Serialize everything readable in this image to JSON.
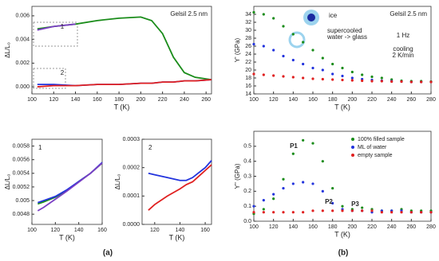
{
  "panel_labels": [
    "(a)",
    "(b)"
  ],
  "chart_data": [
    {
      "type": "line",
      "y_label": "ΔL/L₀",
      "x_label": "T (K)",
      "annotations": [
        "Gelsil 2.5 nm",
        "1",
        "2"
      ],
      "xlim": [
        100,
        265
      ],
      "ylim": [
        -0.0006,
        0.0068
      ],
      "xticks": [
        100,
        120,
        140,
        160,
        180,
        200,
        220,
        240,
        260
      ],
      "yticks": [
        {
          "value": 0,
          "label": "0.000"
        },
        {
          "value": 0.002,
          "label": "0.002"
        },
        {
          "value": 0.004,
          "label": "0.004"
        },
        {
          "value": 0.006,
          "label": "0.006"
        }
      ],
      "x": [
        105,
        120,
        140,
        160,
        180,
        200,
        210,
        220,
        230,
        240,
        250,
        265
      ],
      "series": [
        {
          "color": "#1a8c1a",
          "values": [
            0.0049,
            0.0051,
            0.0053,
            0.0056,
            0.0058,
            0.0059,
            0.0056,
            0.0045,
            0.0025,
            0.0012,
            0.0008,
            0.0006
          ]
        },
        {
          "color": "#7b3fc4",
          "values": [
            0.0048,
            0.0051,
            0.0053,
            null,
            null,
            null,
            null,
            null,
            null,
            null,
            null,
            null
          ]
        },
        {
          "color": "#2233dd",
          "values": [
            0.0002,
            0.0002,
            0.0001,
            0.0002,
            0.0002,
            0.0003,
            0.0003,
            0.0004,
            0.0004,
            0.0005,
            0.0005,
            0.0006
          ]
        },
        {
          "color": "#e02020",
          "values": [
            0.0,
            0.0001,
            0.0001,
            0.0002,
            0.0002,
            0.0003,
            0.0003,
            0.0004,
            0.0004,
            0.0005,
            0.0005,
            0.0006
          ]
        }
      ]
    },
    {
      "type": "line",
      "y_label": "ΔL/L₀",
      "x_label": "T (K)",
      "annotations": [
        "1"
      ],
      "xlim": [
        100,
        160
      ],
      "ylim": [
        0.00465,
        0.0059
      ],
      "xticks": [
        100,
        120,
        140,
        160
      ],
      "yticks": [
        0.0048,
        0.005,
        0.0052,
        0.0054,
        0.0056,
        0.0058
      ],
      "x": [
        105,
        110,
        120,
        130,
        140,
        150,
        160
      ],
      "series": [
        {
          "color": "#1a8c1a",
          "values": [
            0.00495,
            0.00498,
            0.00505,
            0.00515,
            0.00528,
            0.0054,
            0.00555
          ]
        },
        {
          "color": "#2233dd",
          "values": [
            0.00497,
            0.005,
            0.00506,
            0.00516,
            0.00528,
            0.0054,
            0.00556
          ]
        },
        {
          "color": "#7b3fc4",
          "values": [
            0.00485,
            0.0049,
            0.00502,
            0.00514,
            0.00527,
            0.0054,
            0.00555
          ]
        }
      ]
    },
    {
      "type": "line",
      "y_label": "ΔL/L₀",
      "x_label": "T (K)",
      "annotations": [
        "2"
      ],
      "xlim": [
        110,
        165
      ],
      "ylim": [
        0,
        0.0003
      ],
      "xticks": [
        120,
        140,
        160
      ],
      "yticks": [
        {
          "value": 0,
          "label": "0.0000"
        },
        0.0001,
        0.0002,
        0.0003
      ],
      "x": [
        115,
        120,
        130,
        140,
        145,
        150,
        160,
        165
      ],
      "series": [
        {
          "color": "#2233dd",
          "values": [
            0.00018,
            0.000175,
            0.000165,
            0.000155,
            0.000155,
            0.000165,
            0.0002,
            0.000225
          ]
        },
        {
          "color": "#e02020",
          "values": [
            5e-05,
            7e-05,
            0.0001,
            0.000125,
            0.00014,
            0.00015,
            0.00019,
            0.00021
          ]
        }
      ]
    },
    {
      "type": "scatter",
      "y_label": "Y' (GPa)",
      "x_label": "T (K)",
      "annotations": [
        "Gelsil 2.5 nm",
        "ice",
        "supercooled",
        "water -> glass",
        "1 Hz",
        "cooling",
        "2 K/min"
      ],
      "xlim": [
        100,
        280
      ],
      "ylim": [
        14,
        36
      ],
      "xticks": [
        100,
        120,
        140,
        160,
        180,
        200,
        220,
        240,
        260,
        280
      ],
      "yticks": [
        14,
        16,
        18,
        20,
        22,
        24,
        26,
        28,
        30,
        32,
        34
      ],
      "x": [
        100,
        110,
        120,
        130,
        140,
        150,
        160,
        170,
        180,
        190,
        200,
        210,
        220,
        230,
        240,
        250,
        260,
        270,
        280
      ],
      "series": [
        {
          "color": "#1a8c1a",
          "values": [
            34.5,
            34,
            33,
            31,
            29,
            27,
            25,
            23,
            21.5,
            20.5,
            19.5,
            18.8,
            18.3,
            18,
            17.6,
            17.3,
            17.2,
            17.2,
            17.1
          ]
        },
        {
          "color": "#2233dd",
          "values": [
            26.5,
            26,
            25,
            23.5,
            22.5,
            21.5,
            20.5,
            20,
            19,
            18.5,
            18,
            17.7,
            17.5,
            17.3,
            17.2,
            17.1,
            17,
            17,
            17
          ]
        },
        {
          "color": "#e02020",
          "values": [
            19,
            18.8,
            18.6,
            18.4,
            18.2,
            18,
            17.8,
            17.7,
            17.6,
            17.5,
            17.4,
            17.3,
            17.2,
            17.2,
            17.1,
            17.1,
            17,
            17,
            17
          ]
        }
      ]
    },
    {
      "type": "scatter",
      "y_label": "Y'' (GPa)",
      "x_label": "T (K)",
      "annotations": [
        "P1",
        "P2",
        "P3"
      ],
      "xlim": [
        100,
        280
      ],
      "ylim": [
        0,
        0.6
      ],
      "xticks": [
        100,
        120,
        140,
        160,
        180,
        200,
        220,
        240,
        260,
        280
      ],
      "yticks": [
        {
          "value": 0,
          "label": "0.0"
        },
        0.1,
        0.2,
        0.3,
        0.4,
        0.5
      ],
      "x": [
        100,
        110,
        120,
        130,
        140,
        150,
        160,
        170,
        180,
        190,
        200,
        210,
        220,
        230,
        240,
        250,
        260,
        270,
        280
      ],
      "series": [
        {
          "name": "100% filled sample",
          "color": "#1a8c1a",
          "values": [
            0.05,
            0.08,
            0.15,
            0.28,
            0.45,
            0.54,
            0.52,
            0.4,
            0.22,
            0.1,
            0.08,
            0.09,
            0.08,
            0.07,
            0.07,
            0.08,
            0.07,
            0.07,
            0.07
          ]
        },
        {
          "name": "ML of water",
          "color": "#2233dd",
          "values": [
            0.1,
            0.14,
            0.18,
            0.22,
            0.25,
            0.26,
            0.25,
            0.2,
            0.12,
            0.08,
            0.07,
            0.07,
            0.06,
            0.07,
            0.07,
            0.07,
            0.06,
            0.06,
            0.06
          ]
        },
        {
          "name": "empty sample",
          "color": "#e02020",
          "values": [
            0.06,
            0.06,
            0.06,
            0.06,
            0.06,
            0.06,
            0.07,
            0.07,
            0.07,
            0.07,
            0.07,
            0.07,
            0.07,
            0.06,
            0.06,
            0.06,
            0.06,
            0.06,
            0.06
          ]
        }
      ]
    }
  ]
}
